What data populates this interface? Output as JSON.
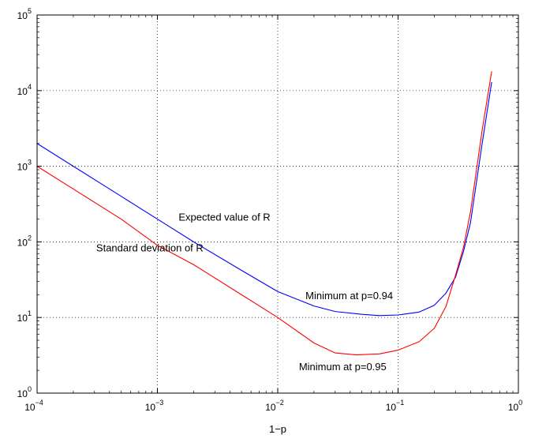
{
  "chart_data": {
    "type": "line",
    "title": "",
    "xlabel": "1−p",
    "ylabel": "",
    "xscale": "log",
    "yscale": "log",
    "xlim": [
      0.0001,
      1
    ],
    "ylim": [
      1,
      100000
    ],
    "grid": "dotted",
    "x_ticks": [
      0.0001,
      0.001,
      0.01,
      0.1,
      1
    ],
    "x_tick_labels": [
      {
        "base": "10",
        "exp": "−4"
      },
      {
        "base": "10",
        "exp": "−3"
      },
      {
        "base": "10",
        "exp": "−2"
      },
      {
        "base": "10",
        "exp": "−1"
      },
      {
        "base": "10",
        "exp": "0"
      }
    ],
    "y_ticks": [
      1,
      10,
      100,
      1000,
      10000,
      100000
    ],
    "y_tick_labels": [
      {
        "base": "10",
        "exp": "0"
      },
      {
        "base": "10",
        "exp": "1"
      },
      {
        "base": "10",
        "exp": "2"
      },
      {
        "base": "10",
        "exp": "3"
      },
      {
        "base": "10",
        "exp": "4"
      },
      {
        "base": "10",
        "exp": "5"
      }
    ],
    "series": [
      {
        "color": "#0000ff",
        "x": [
          0.0001,
          0.0002,
          0.0005,
          0.001,
          0.002,
          0.005,
          0.01,
          0.02,
          0.03,
          0.05,
          0.07,
          0.1,
          0.15,
          0.2,
          0.25,
          0.3,
          0.35,
          0.4,
          0.5,
          0.6
        ],
        "y": [
          2000,
          1000,
          400,
          200,
          100,
          42,
          22,
          14.2,
          12,
          11,
          10.6,
          10.8,
          11.8,
          14.5,
          21,
          34,
          75,
          180,
          2000,
          13000
        ]
      },
      {
        "color": "#ff0000",
        "x": [
          0.0001,
          0.0002,
          0.0005,
          0.001,
          0.002,
          0.005,
          0.01,
          0.02,
          0.03,
          0.045,
          0.07,
          0.1,
          0.15,
          0.2,
          0.25,
          0.3,
          0.35,
          0.4,
          0.5,
          0.6
        ],
        "y": [
          1000,
          500,
          200,
          90,
          50,
          20,
          10,
          4.6,
          3.4,
          3.2,
          3.3,
          3.7,
          4.8,
          7.2,
          14,
          36,
          85,
          250,
          3000,
          18000
        ]
      }
    ],
    "annotations": [
      {
        "text": "Expected value of R",
        "x": 0.0015,
        "y": 190
      },
      {
        "text": "Standard deviation of R",
        "x": 0.00031,
        "y": 75
      },
      {
        "text": "Minimum at p=0.94",
        "x": 0.017,
        "y": 17.5
      },
      {
        "text": "Minimum at p=0.95",
        "x": 0.015,
        "y": 2.0
      }
    ]
  }
}
